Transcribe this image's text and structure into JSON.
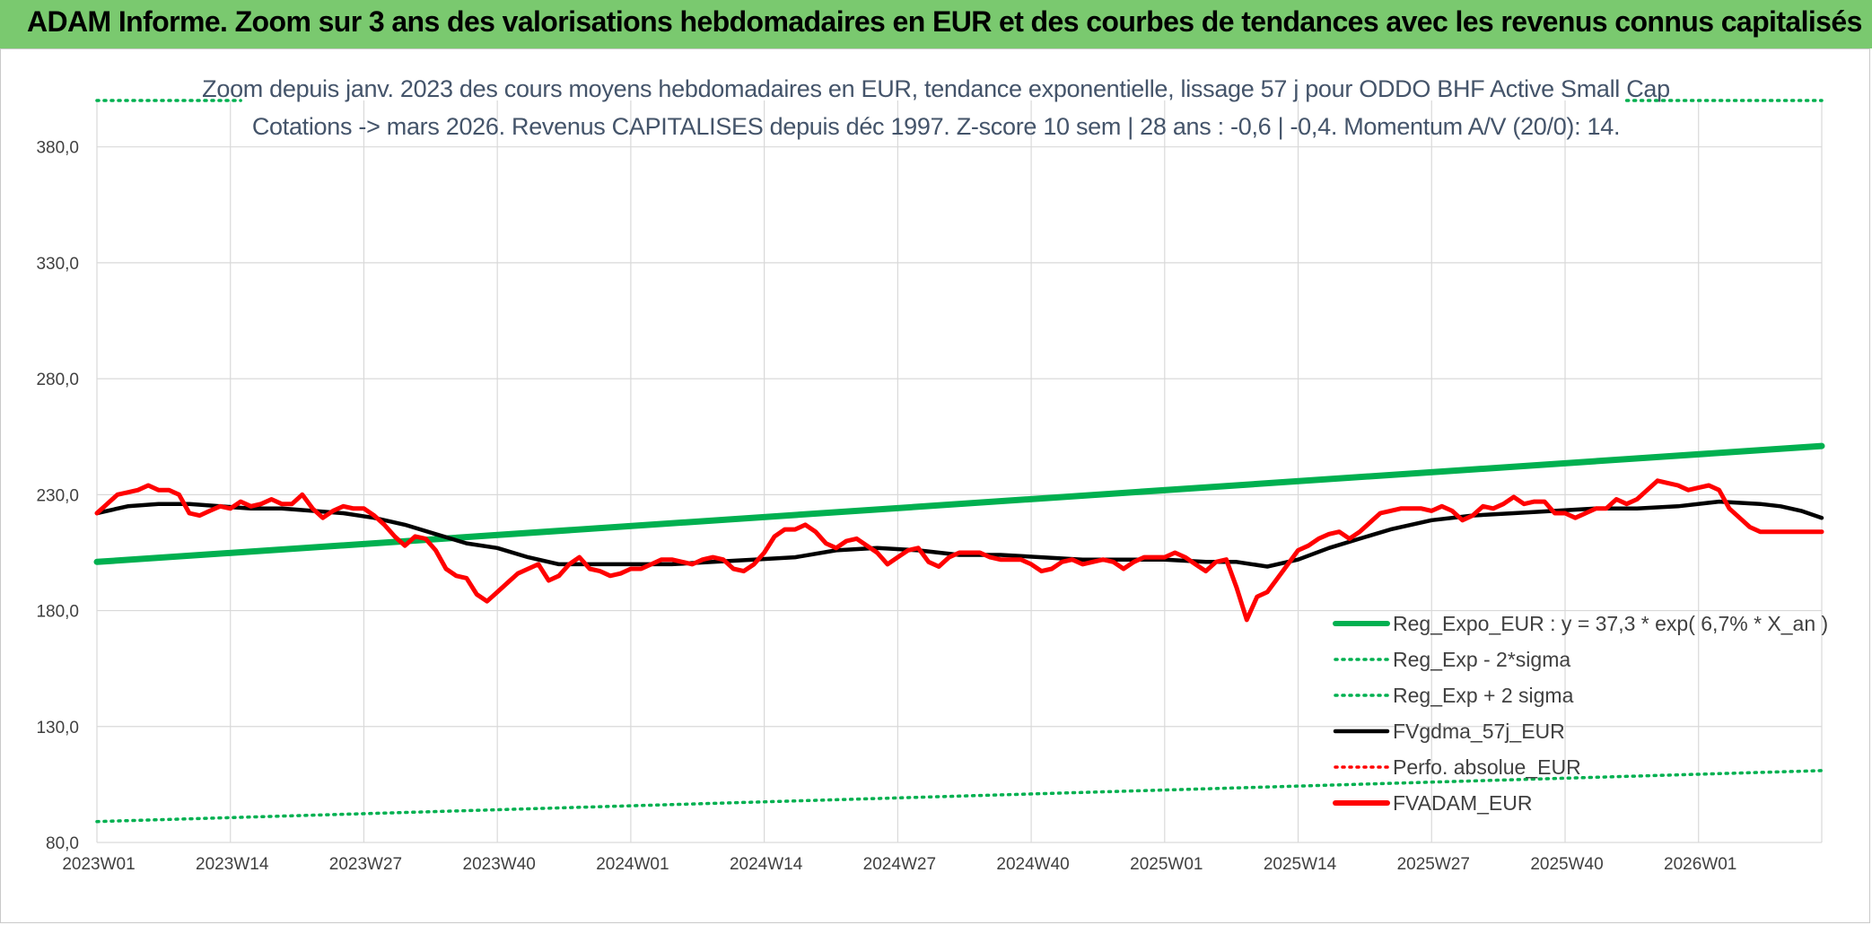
{
  "header": {
    "title": "ADAM Informe. Zoom sur 3 ans des valorisations hebdomadaires en EUR et des courbes de tendances avec les revenus connus capitalisés"
  },
  "chart_data": {
    "type": "line",
    "title": "Zoom depuis janv. 2023 des cours moyens hebdomadaires en EUR, tendance exponentielle, lissage 57 j pour ODDO BHF Active Small Cap",
    "subtitle": "Cotations -> mars 2026. Revenus CAPITALISES depuis déc 1997. Z-score 10 sem | 28 ans : -0,6 | -0,4. Momentum A/V (20/0): 14.",
    "xlabel": "",
    "ylabel": "",
    "ylim": [
      80,
      400
    ],
    "y_ticks": [
      "80,0",
      "130,0",
      "180,0",
      "230,0",
      "280,0",
      "330,0",
      "380,0"
    ],
    "x_tick_labels": [
      "2023W01",
      "2023W14",
      "2023W27",
      "2023W40",
      "2024W01",
      "2024W14",
      "2024W27",
      "2024W40",
      "2025W01",
      "2025W14",
      "2025W27",
      "2025W40",
      "2026W01"
    ],
    "x_start": "2023W01",
    "grid": true,
    "legend_position": "bottom-right",
    "series": [
      {
        "name": "Reg_Expo_EUR : y = 37,3 * exp( 6,7% *  X_an )",
        "color": "#00b050",
        "style": "solid-thick",
        "x": [
          0,
          168
        ],
        "values": [
          201.0,
          251.0
        ]
      },
      {
        "name": "Reg_Exp - 2*sigma",
        "color": "#00b050",
        "style": "dotted",
        "x": [
          0,
          168
        ],
        "values": [
          89.0,
          111.0
        ]
      },
      {
        "name": "Reg_Exp + 2 sigma",
        "color": "#00b050",
        "style": "dotted",
        "x": [
          0,
          14,
          149,
          168
        ],
        "values": [
          400,
          400,
          400,
          400
        ]
      },
      {
        "name": "FVgdma_57j_EUR",
        "color": "#000000",
        "style": "solid",
        "x": [
          0,
          3,
          6,
          9,
          12,
          15,
          18,
          21,
          24,
          27,
          30,
          33,
          36,
          39,
          42,
          45,
          48,
          52,
          56,
          60,
          64,
          68,
          72,
          76,
          80,
          84,
          88,
          92,
          96,
          100,
          104,
          108,
          111,
          114,
          117,
          120,
          123,
          126,
          130,
          134,
          138,
          142,
          146,
          150,
          154,
          158,
          162,
          164,
          166,
          168
        ],
        "values": [
          222,
          225,
          226,
          226,
          225,
          224,
          224,
          223,
          222,
          220,
          217,
          213,
          209,
          207,
          203,
          200,
          200,
          200,
          200,
          201,
          202,
          203,
          206,
          207,
          206,
          204,
          204,
          203,
          202,
          202,
          202,
          201,
          201,
          199,
          202,
          207,
          211,
          215,
          219,
          221,
          222,
          223,
          224,
          224,
          225,
          227,
          226,
          225,
          223,
          220
        ]
      },
      {
        "name": "Perfo. absolue_EUR",
        "color": "#ff0000",
        "style": "dotted",
        "x": [],
        "values": []
      },
      {
        "name": "FVADAM_EUR",
        "color": "#ff0000",
        "style": "solid-thick",
        "x": [
          0,
          1,
          2,
          3,
          4,
          5,
          6,
          7,
          8,
          9,
          10,
          11,
          12,
          13,
          14,
          15,
          16,
          17,
          18,
          19,
          20,
          21,
          22,
          23,
          24,
          25,
          26,
          27,
          28,
          29,
          30,
          31,
          32,
          33,
          34,
          35,
          36,
          37,
          38,
          39,
          40,
          41,
          42,
          43,
          44,
          45,
          46,
          47,
          48,
          49,
          50,
          51,
          52,
          53,
          54,
          55,
          56,
          57,
          58,
          59,
          60,
          61,
          62,
          63,
          64,
          65,
          66,
          67,
          68,
          69,
          70,
          71,
          72,
          73,
          74,
          75,
          76,
          77,
          78,
          79,
          80,
          81,
          82,
          83,
          84,
          85,
          86,
          87,
          88,
          89,
          90,
          91,
          92,
          93,
          94,
          95,
          96,
          97,
          98,
          99,
          100,
          101,
          102,
          103,
          104,
          105,
          106,
          107,
          108,
          109,
          110,
          111,
          112,
          113,
          114,
          115,
          116,
          117,
          118,
          119,
          120,
          121,
          122,
          123,
          124,
          125,
          126,
          127,
          128,
          129,
          130,
          131,
          132,
          133,
          134,
          135,
          136,
          137,
          138,
          139,
          140,
          141,
          142,
          143,
          144,
          145,
          146,
          147,
          148,
          149,
          150,
          151,
          152,
          153,
          154,
          155,
          156,
          157,
          158,
          159,
          160,
          161,
          162,
          163,
          164,
          165,
          166,
          167,
          168
        ],
        "values": [
          222,
          226,
          230,
          231,
          232,
          234,
          232,
          232,
          230,
          222,
          221,
          223,
          225,
          224,
          227,
          225,
          226,
          228,
          226,
          226,
          230,
          224,
          220,
          223,
          225,
          224,
          224,
          221,
          217,
          212,
          208,
          212,
          211,
          206,
          198,
          195,
          194,
          187,
          184,
          188,
          192,
          196,
          198,
          200,
          193,
          195,
          200,
          203,
          198,
          197,
          195,
          196,
          198,
          198,
          200,
          202,
          202,
          201,
          200,
          202,
          203,
          202,
          198,
          197,
          200,
          205,
          212,
          215,
          215,
          217,
          214,
          209,
          207,
          210,
          211,
          208,
          205,
          200,
          203,
          206,
          207,
          201,
          199,
          203,
          205,
          205,
          205,
          203,
          202,
          202,
          202,
          200,
          197,
          198,
          201,
          202,
          200,
          201,
          202,
          201,
          198,
          201,
          203,
          203,
          203,
          205,
          203,
          200,
          197,
          201,
          202,
          190,
          176,
          186,
          188,
          194,
          200,
          206,
          208,
          211,
          213,
          214,
          211,
          214,
          218,
          222,
          223,
          224,
          224,
          224,
          223,
          225,
          223,
          219,
          221,
          225,
          224,
          226,
          229,
          226,
          227,
          227,
          222,
          222,
          220,
          222,
          224,
          224,
          228,
          226,
          228,
          232,
          236,
          235,
          234,
          232,
          233,
          234,
          232,
          224,
          220,
          216,
          214,
          214,
          214,
          214,
          214,
          214,
          214
        ]
      }
    ]
  }
}
